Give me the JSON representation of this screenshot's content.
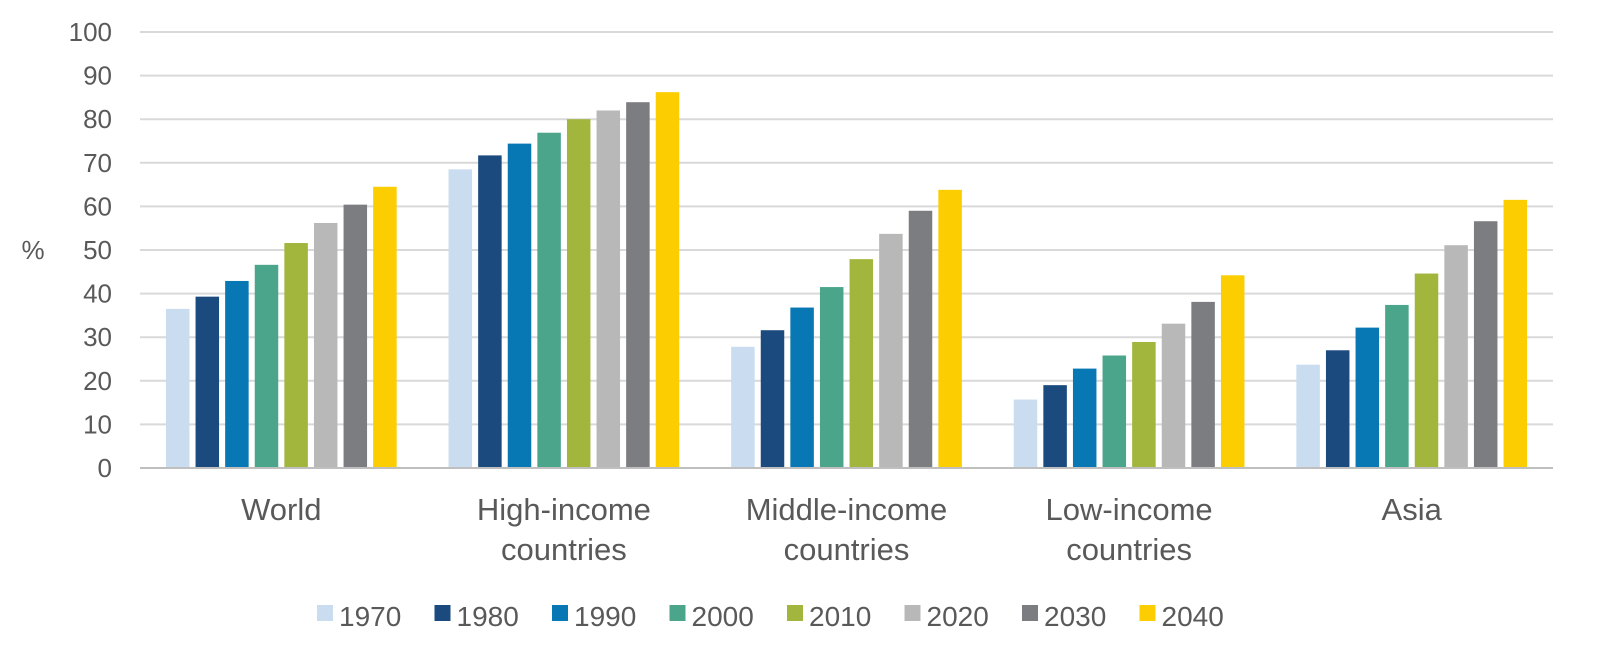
{
  "chart_data": {
    "type": "bar",
    "title": "",
    "xlabel": "",
    "ylabel": "%",
    "ylim": [
      0,
      100
    ],
    "yticks": [
      0,
      10,
      20,
      30,
      40,
      50,
      60,
      70,
      80,
      90,
      100
    ],
    "grid": true,
    "legend_position": "bottom",
    "categories": [
      [
        "World"
      ],
      [
        "High-income",
        "countries"
      ],
      [
        "Middle-income",
        "countries"
      ],
      [
        "Low-income",
        "countries"
      ],
      [
        "Asia"
      ]
    ],
    "series": [
      {
        "name": "1970",
        "color": "#c9dcf0",
        "values": [
          36.5,
          68.5,
          27.8,
          15.7,
          23.7
        ]
      },
      {
        "name": "1980",
        "color": "#1a4a7e",
        "values": [
          39.3,
          71.7,
          31.6,
          19.0,
          27.0
        ]
      },
      {
        "name": "1990",
        "color": "#0878b4",
        "values": [
          42.9,
          74.4,
          36.8,
          22.8,
          32.2
        ]
      },
      {
        "name": "2000",
        "color": "#4aa58b",
        "values": [
          46.6,
          76.9,
          41.5,
          25.8,
          37.4
        ]
      },
      {
        "name": "2010",
        "color": "#a2b53c",
        "values": [
          51.6,
          80.0,
          47.9,
          28.9,
          44.6
        ]
      },
      {
        "name": "2020",
        "color": "#b8b8b8",
        "values": [
          56.2,
          82.0,
          53.7,
          33.1,
          51.1
        ]
      },
      {
        "name": "2030",
        "color": "#7c7d80",
        "values": [
          60.4,
          83.9,
          59.0,
          38.1,
          56.6
        ]
      },
      {
        "name": "2040",
        "color": "#fccd00",
        "values": [
          64.5,
          86.2,
          63.8,
          44.2,
          61.5
        ]
      }
    ]
  }
}
